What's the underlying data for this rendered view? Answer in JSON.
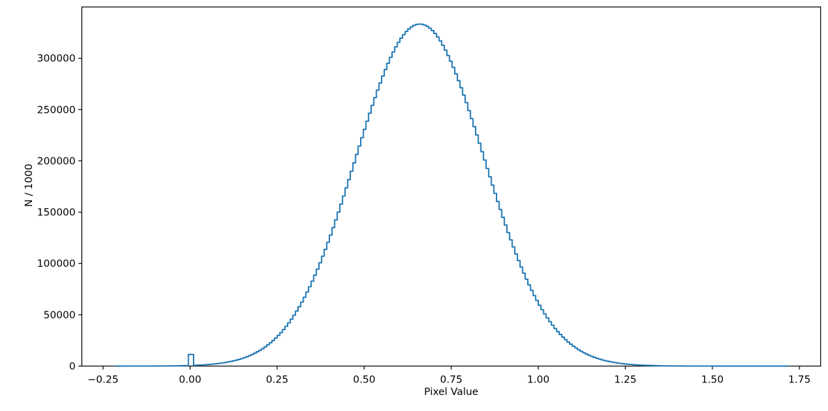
{
  "figure": {
    "background_color": "#ffffff",
    "axis_color": "#000000",
    "tick_label_color": "#000000"
  },
  "chart_data": {
    "type": "histogram",
    "histtype": "step",
    "line_color": "#1f77b4",
    "title": "",
    "xlabel": "Pixel Value",
    "ylabel": "N / 1000",
    "grid": false,
    "legend": false,
    "xlim": [
      -0.311,
      1.811
    ],
    "ylim": [
      0,
      350000
    ],
    "x_ticks": [
      -0.25,
      0.0,
      0.25,
      0.5,
      0.75,
      1.0,
      1.25,
      1.5,
      1.75
    ],
    "x_tick_labels": [
      "−0.25",
      "0.00",
      "0.25",
      "0.50",
      "0.75",
      "1.00",
      "1.25",
      "1.50",
      "1.75"
    ],
    "y_ticks": [
      0,
      50000,
      100000,
      150000,
      200000,
      250000,
      300000
    ],
    "y_tick_labels": [
      "0",
      "50000",
      "100000",
      "150000",
      "200000",
      "250000",
      "300000"
    ],
    "data_range": [
      -0.215,
      1.72
    ],
    "bins": {
      "start": -0.215,
      "width": 0.0075,
      "count": 258
    },
    "distribution": {
      "shape": "gaussian",
      "mean": 0.66,
      "sigma": 0.185,
      "peak_value": 333333
    },
    "zero_spike": {
      "bin_indices": [
        28,
        29
      ],
      "value": 11300,
      "x_range": [
        -0.005,
        0.01
      ]
    },
    "peak": {
      "x": 0.66,
      "value": 333000
    },
    "profile_samples": {
      "note": "envelope of histogram counts sampled every 0.05 in Pixel Value",
      "x_start": -0.2,
      "x_step": 0.05,
      "values": [
        7,
        23,
        72,
        211,
        574,
        1452,
        3418,
        7455,
        15147,
        28587,
        50184,
        81867,
        124160,
        175010,
        229327,
        279323,
        316257,
        332847,
        325632,
        296133,
        250336,
        196716,
        143696,
        97553,
        61587,
        36113,
        19695,
        9986,
        4709,
        2062,
        839,
        317,
        112,
        37,
        11,
        3,
        1,
        0,
        0
      ]
    }
  }
}
